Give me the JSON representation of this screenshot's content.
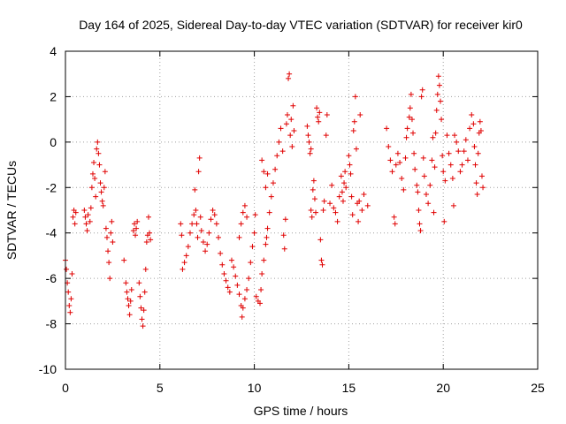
{
  "chart_data": {
    "type": "scatter",
    "title": "Day 164 of 2025, Sidereal Day-to-day VTEC variation (SDTVAR) for receiver kir0",
    "xlabel": "GPS time / hours",
    "ylabel": "SDTVAR / TECUs",
    "xlim": [
      0,
      25
    ],
    "ylim": [
      -10,
      4
    ],
    "x_ticks": [
      0,
      5,
      10,
      15,
      20,
      25
    ],
    "x_tick_labels": [
      "0",
      "5",
      "10",
      "15",
      "20",
      "25"
    ],
    "y_ticks": [
      -10,
      -8,
      -6,
      -4,
      -2,
      0,
      2,
      4
    ],
    "y_tick_labels": [
      "-10",
      "-8",
      "-6",
      "-4",
      "-2",
      "0",
      "2",
      "4"
    ],
    "grid": true,
    "marker": "+",
    "marker_color": "#e00000",
    "series": [
      {
        "name": "SDTVAR",
        "points": [
          [
            0.0,
            -5.2
          ],
          [
            0.05,
            -5.6
          ],
          [
            0.1,
            -6.2
          ],
          [
            0.15,
            -6.6
          ],
          [
            0.2,
            -7.2
          ],
          [
            0.25,
            -7.5
          ],
          [
            0.3,
            -6.9
          ],
          [
            0.35,
            -5.8
          ],
          [
            0.4,
            -3.3
          ],
          [
            0.45,
            -3.0
          ],
          [
            0.5,
            -3.6
          ],
          [
            0.55,
            -3.1
          ],
          [
            1.0,
            -3.0
          ],
          [
            1.05,
            -3.3
          ],
          [
            1.1,
            -3.6
          ],
          [
            1.15,
            -3.9
          ],
          [
            1.2,
            -3.2
          ],
          [
            1.3,
            -3.5
          ],
          [
            1.35,
            -2.9
          ],
          [
            1.4,
            -2.0
          ],
          [
            1.45,
            -1.4
          ],
          [
            1.5,
            -0.9
          ],
          [
            1.55,
            -1.6
          ],
          [
            1.6,
            -2.4
          ],
          [
            1.65,
            -0.3
          ],
          [
            1.7,
            0.0
          ],
          [
            1.75,
            -0.5
          ],
          [
            1.8,
            -1.0
          ],
          [
            1.85,
            -1.8
          ],
          [
            1.9,
            -2.2
          ],
          [
            1.95,
            -2.6
          ],
          [
            2.0,
            -2.8
          ],
          [
            2.05,
            -2.0
          ],
          [
            2.1,
            -1.3
          ],
          [
            2.15,
            -3.8
          ],
          [
            2.2,
            -4.2
          ],
          [
            2.25,
            -4.8
          ],
          [
            2.3,
            -5.3
          ],
          [
            2.35,
            -6.0
          ],
          [
            2.4,
            -4.0
          ],
          [
            2.45,
            -3.5
          ],
          [
            2.5,
            -4.4
          ],
          [
            3.1,
            -5.2
          ],
          [
            3.2,
            -6.2
          ],
          [
            3.25,
            -6.6
          ],
          [
            3.3,
            -6.9
          ],
          [
            3.35,
            -7.2
          ],
          [
            3.4,
            -7.6
          ],
          [
            3.45,
            -7.0
          ],
          [
            3.5,
            -6.5
          ],
          [
            3.6,
            -3.9
          ],
          [
            3.65,
            -3.6
          ],
          [
            3.7,
            -4.1
          ],
          [
            3.75,
            -3.8
          ],
          [
            3.8,
            -3.5
          ],
          [
            3.9,
            -6.2
          ],
          [
            3.95,
            -6.8
          ],
          [
            4.0,
            -7.3
          ],
          [
            4.05,
            -7.8
          ],
          [
            4.1,
            -8.1
          ],
          [
            4.15,
            -7.4
          ],
          [
            4.2,
            -6.6
          ],
          [
            4.25,
            -5.6
          ],
          [
            4.3,
            -4.4
          ],
          [
            4.35,
            -4.1
          ],
          [
            4.4,
            -3.3
          ],
          [
            4.45,
            -4.0
          ],
          [
            4.5,
            -4.3
          ],
          [
            6.1,
            -3.6
          ],
          [
            6.15,
            -4.1
          ],
          [
            6.2,
            -5.6
          ],
          [
            6.3,
            -5.3
          ],
          [
            6.4,
            -5.0
          ],
          [
            6.5,
            -4.6
          ],
          [
            6.6,
            -4.0
          ],
          [
            6.7,
            -3.6
          ],
          [
            6.8,
            -3.2
          ],
          [
            6.85,
            -2.1
          ],
          [
            6.9,
            -3.0
          ],
          [
            6.95,
            -3.6
          ],
          [
            7.0,
            -4.2
          ],
          [
            7.05,
            -1.3
          ],
          [
            7.1,
            -0.7
          ],
          [
            7.15,
            -3.3
          ],
          [
            7.2,
            -3.9
          ],
          [
            7.3,
            -4.4
          ],
          [
            7.4,
            -4.8
          ],
          [
            7.5,
            -4.5
          ],
          [
            7.6,
            -4.0
          ],
          [
            7.7,
            -3.4
          ],
          [
            7.8,
            -3.0
          ],
          [
            7.9,
            -3.2
          ],
          [
            8.0,
            -3.6
          ],
          [
            8.1,
            -4.2
          ],
          [
            8.2,
            -4.9
          ],
          [
            8.3,
            -5.4
          ],
          [
            8.4,
            -5.8
          ],
          [
            8.5,
            -6.1
          ],
          [
            8.6,
            -6.4
          ],
          [
            8.7,
            -6.6
          ],
          [
            8.8,
            -5.2
          ],
          [
            8.9,
            -5.5
          ],
          [
            9.0,
            -5.9
          ],
          [
            9.1,
            -6.3
          ],
          [
            9.2,
            -6.7
          ],
          [
            9.3,
            -7.2
          ],
          [
            9.35,
            -7.7
          ],
          [
            9.4,
            -7.3
          ],
          [
            9.5,
            -6.9
          ],
          [
            9.6,
            -6.5
          ],
          [
            9.7,
            -6.0
          ],
          [
            9.8,
            -5.3
          ],
          [
            9.9,
            -4.6
          ],
          [
            10.0,
            -4.0
          ],
          [
            10.05,
            -3.2
          ],
          [
            9.2,
            -4.2
          ],
          [
            9.3,
            -3.6
          ],
          [
            9.4,
            -3.1
          ],
          [
            9.5,
            -2.8
          ],
          [
            9.6,
            -3.3
          ],
          [
            10.1,
            -6.8
          ],
          [
            10.2,
            -7.0
          ],
          [
            10.3,
            -7.1
          ],
          [
            10.35,
            -6.5
          ],
          [
            10.4,
            -5.8
          ],
          [
            10.5,
            -5.2
          ],
          [
            10.6,
            -4.5
          ],
          [
            10.7,
            -3.8
          ],
          [
            10.8,
            -3.1
          ],
          [
            10.9,
            -2.4
          ],
          [
            11.0,
            -1.8
          ],
          [
            11.1,
            -1.2
          ],
          [
            11.2,
            -0.6
          ],
          [
            11.3,
            0.0
          ],
          [
            10.4,
            -0.8
          ],
          [
            10.5,
            -1.3
          ],
          [
            10.6,
            -2.0
          ],
          [
            10.65,
            -4.2
          ],
          [
            10.7,
            -1.4
          ],
          [
            11.4,
            0.6
          ],
          [
            11.5,
            -0.4
          ],
          [
            11.55,
            -4.1
          ],
          [
            11.6,
            -4.7
          ],
          [
            11.65,
            -3.4
          ],
          [
            11.7,
            0.8
          ],
          [
            11.75,
            1.2
          ],
          [
            11.8,
            2.8
          ],
          [
            11.85,
            3.0
          ],
          [
            11.9,
            0.3
          ],
          [
            11.95,
            1.0
          ],
          [
            12.0,
            -0.2
          ],
          [
            12.05,
            1.6
          ],
          [
            12.1,
            0.5
          ],
          [
            12.8,
            0.7
          ],
          [
            12.85,
            0.3
          ],
          [
            12.9,
            0.0
          ],
          [
            13.0,
            -0.3
          ],
          [
            12.95,
            -0.5
          ],
          [
            13.0,
            -3.0
          ],
          [
            13.05,
            -3.3
          ],
          [
            13.1,
            -2.1
          ],
          [
            13.15,
            -1.7
          ],
          [
            13.2,
            -2.5
          ],
          [
            13.25,
            -3.1
          ],
          [
            13.3,
            1.5
          ],
          [
            13.35,
            1.1
          ],
          [
            13.4,
            0.9
          ],
          [
            13.45,
            1.3
          ],
          [
            13.5,
            -4.3
          ],
          [
            13.55,
            -5.2
          ],
          [
            13.6,
            -5.4
          ],
          [
            13.65,
            -3.0
          ],
          [
            13.7,
            -2.6
          ],
          [
            13.8,
            0.3
          ],
          [
            13.85,
            1.2
          ],
          [
            14.0,
            -2.7
          ],
          [
            14.1,
            -1.9
          ],
          [
            14.2,
            -2.9
          ],
          [
            14.3,
            -3.1
          ],
          [
            14.4,
            -3.5
          ],
          [
            14.5,
            -2.4
          ],
          [
            14.6,
            -1.5
          ],
          [
            14.65,
            -2.2
          ],
          [
            14.7,
            -2.6
          ],
          [
            14.75,
            -1.8
          ],
          [
            14.8,
            -1.3
          ],
          [
            14.85,
            -2.0
          ],
          [
            15.0,
            -0.6
          ],
          [
            15.05,
            -1.0
          ],
          [
            15.1,
            -1.4
          ],
          [
            15.15,
            -2.4
          ],
          [
            15.2,
            -3.2
          ],
          [
            15.25,
            0.5
          ],
          [
            15.3,
            0.9
          ],
          [
            15.35,
            2.0
          ],
          [
            15.4,
            -0.3
          ],
          [
            15.45,
            -2.7
          ],
          [
            15.5,
            -3.5
          ],
          [
            15.55,
            -2.6
          ],
          [
            15.6,
            1.2
          ],
          [
            15.7,
            -3.0
          ],
          [
            15.8,
            -2.3
          ],
          [
            16.0,
            -2.8
          ],
          [
            17.0,
            0.6
          ],
          [
            17.1,
            -0.2
          ],
          [
            17.2,
            -0.8
          ],
          [
            17.3,
            -1.3
          ],
          [
            17.4,
            -3.3
          ],
          [
            17.45,
            -3.6
          ],
          [
            17.5,
            -1.0
          ],
          [
            17.6,
            -0.5
          ],
          [
            17.7,
            -0.9
          ],
          [
            17.8,
            -1.6
          ],
          [
            17.9,
            -2.1
          ],
          [
            18.0,
            -0.7
          ],
          [
            18.05,
            0.2
          ],
          [
            18.1,
            0.6
          ],
          [
            18.2,
            1.1
          ],
          [
            18.25,
            1.5
          ],
          [
            18.3,
            2.1
          ],
          [
            18.35,
            1.0
          ],
          [
            18.4,
            0.4
          ],
          [
            18.45,
            -0.5
          ],
          [
            18.5,
            -1.2
          ],
          [
            18.6,
            -1.9
          ],
          [
            18.65,
            -2.2
          ],
          [
            18.7,
            -3.0
          ],
          [
            18.75,
            -3.6
          ],
          [
            18.8,
            -3.9
          ],
          [
            18.85,
            2.0
          ],
          [
            18.9,
            2.3
          ],
          [
            18.95,
            -0.7
          ],
          [
            19.0,
            -1.5
          ],
          [
            19.1,
            -2.3
          ],
          [
            19.2,
            -2.7
          ],
          [
            19.3,
            -1.9
          ],
          [
            19.4,
            -0.8
          ],
          [
            19.45,
            0.2
          ],
          [
            19.5,
            -3.1
          ],
          [
            19.55,
            -1.1
          ],
          [
            19.6,
            0.4
          ],
          [
            19.65,
            1.4
          ],
          [
            19.7,
            2.1
          ],
          [
            19.75,
            2.9
          ],
          [
            19.8,
            2.5
          ],
          [
            19.85,
            1.8
          ],
          [
            19.9,
            1.0
          ],
          [
            19.95,
            -0.6
          ],
          [
            20.0,
            -1.3
          ],
          [
            20.05,
            -3.5
          ],
          [
            20.1,
            -1.7
          ],
          [
            20.2,
            0.3
          ],
          [
            20.3,
            -0.5
          ],
          [
            20.4,
            -1.0
          ],
          [
            20.5,
            -1.6
          ],
          [
            20.55,
            -2.8
          ],
          [
            20.6,
            0.3
          ],
          [
            20.7,
            0.0
          ],
          [
            20.8,
            -0.4
          ],
          [
            20.9,
            -1.3
          ],
          [
            21.0,
            -1.0
          ],
          [
            21.1,
            -0.4
          ],
          [
            21.2,
            0.1
          ],
          [
            21.3,
            -0.8
          ],
          [
            21.4,
            0.6
          ],
          [
            21.5,
            1.2
          ],
          [
            21.6,
            0.8
          ],
          [
            21.65,
            -0.2
          ],
          [
            21.7,
            -1.0
          ],
          [
            21.75,
            -1.8
          ],
          [
            21.8,
            -2.3
          ],
          [
            21.85,
            -0.5
          ],
          [
            21.9,
            0.4
          ],
          [
            21.95,
            0.9
          ],
          [
            22.0,
            0.5
          ],
          [
            22.05,
            -1.5
          ],
          [
            22.1,
            -2.0
          ]
        ]
      }
    ]
  }
}
